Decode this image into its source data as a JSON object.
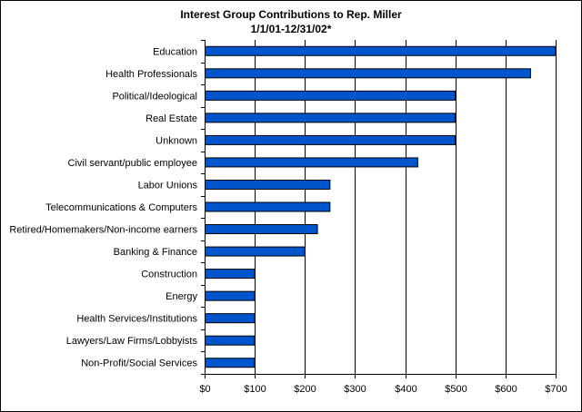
{
  "chart_data": {
    "type": "bar",
    "orientation": "horizontal",
    "title": "Interest Group Contributions to Rep. Miller",
    "subtitle": "1/1/01-12/31/02*",
    "categories": [
      "Education",
      "Health Professionals",
      "Political/Ideological",
      "Real Estate",
      "Unknown",
      "Civil servant/public employee",
      "Labor Unions",
      "Telecommunications & Computers",
      "Retired/Homemakers/Non-income earners",
      "Banking & Finance",
      "Construction",
      "Energy",
      "Health Services/Institutions",
      "Lawyers/Law Firms/Lobbyists",
      "Non-Profit/Social Services"
    ],
    "values": [
      700,
      650,
      500,
      500,
      500,
      425,
      250,
      250,
      225,
      200,
      100,
      100,
      100,
      100,
      100
    ],
    "xlim": [
      0,
      700
    ],
    "x_ticks": [
      0,
      100,
      200,
      300,
      400,
      500,
      600,
      700
    ],
    "x_tick_labels": [
      "$0",
      "$100",
      "$200",
      "$300",
      "$400",
      "$500",
      "$600",
      "$700"
    ],
    "grid": "vertical",
    "legend": "none",
    "bar_color": "#0055cc"
  }
}
